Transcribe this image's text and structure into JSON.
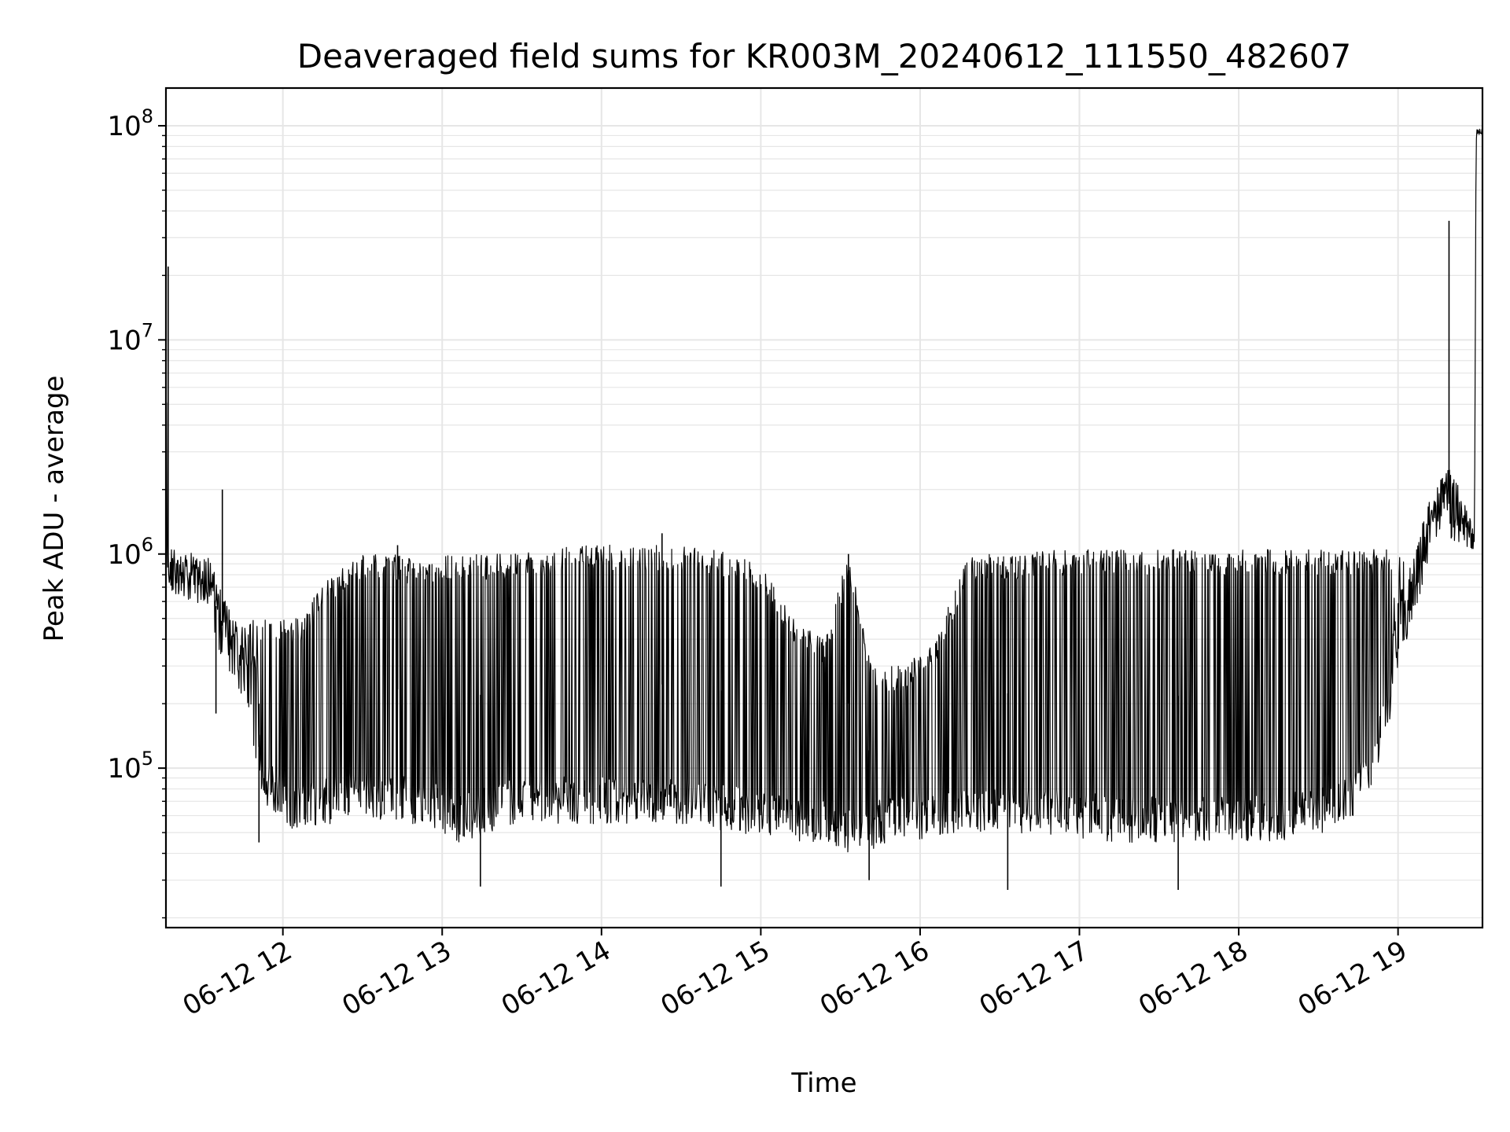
{
  "chart_data": {
    "type": "line",
    "title": "Deaveraged field sums for KR003M_20240612_111550_482607",
    "xlabel": "Time",
    "ylabel": "Peak ADU - average",
    "yscale": "log",
    "ylim": [
      18000,
      150000000
    ],
    "xlim_hours": [
      11.266,
      19.53
    ],
    "grid": true,
    "line_color": "#000000",
    "grid_color": "#e6e6e6",
    "x_ticks": [
      {
        "hour": 12,
        "label": "06-12 12"
      },
      {
        "hour": 13,
        "label": "06-12 13"
      },
      {
        "hour": 14,
        "label": "06-12 14"
      },
      {
        "hour": 15,
        "label": "06-12 15"
      },
      {
        "hour": 16,
        "label": "06-12 16"
      },
      {
        "hour": 17,
        "label": "06-12 17"
      },
      {
        "hour": 18,
        "label": "06-12 18"
      },
      {
        "hour": 19,
        "label": "06-12 19"
      }
    ],
    "y_ticks": [
      {
        "value": 100000,
        "base": "10",
        "exp": "5"
      },
      {
        "value": 1000000,
        "base": "10",
        "exp": "6"
      },
      {
        "value": 10000000,
        "base": "10",
        "exp": "7"
      },
      {
        "value": 100000000,
        "base": "10",
        "exp": "8"
      }
    ],
    "series": [
      {
        "name": "Peak ADU - average",
        "envelope": {
          "hours": [
            11.266,
            11.28,
            11.3,
            11.45,
            11.55,
            11.6,
            11.7,
            11.8,
            11.85,
            11.9,
            12.0,
            12.1,
            12.3,
            12.5,
            12.7,
            12.9,
            13.0,
            13.1,
            13.3,
            13.5,
            13.8,
            14.0,
            14.3,
            14.5,
            14.7,
            14.85,
            15.0,
            15.2,
            15.4,
            15.55,
            15.7,
            15.9,
            16.1,
            16.3,
            16.6,
            16.9,
            17.2,
            17.6,
            18.0,
            18.3,
            18.6,
            18.75,
            18.85,
            18.95,
            19.0,
            19.1,
            19.2,
            19.3,
            19.35,
            19.4,
            19.45,
            19.48,
            19.49,
            19.5,
            19.53
          ],
          "lows": [
            800000,
            700000,
            650000,
            600000,
            500000,
            350000,
            250000,
            150000,
            80000,
            65000,
            55000,
            50000,
            55000,
            60000,
            55000,
            55000,
            50000,
            45000,
            50000,
            55000,
            55000,
            55000,
            55000,
            55000,
            52000,
            50000,
            48000,
            46000,
            44000,
            40000,
            42000,
            45000,
            48000,
            50000,
            50000,
            48000,
            45000,
            45000,
            45000,
            46000,
            50000,
            60000,
            90000,
            150000,
            300000,
            500000,
            900000,
            1200000,
            1150000,
            1100000,
            1050000,
            1050000,
            85000000,
            90000000,
            92000000
          ],
          "highs": [
            10000000,
            1200000,
            1100000,
            1000000,
            1000000,
            700000,
            500000,
            500000,
            500000,
            500000,
            500000,
            500000,
            800000,
            1000000,
            1000000,
            900000,
            1000000,
            1000000,
            1000000,
            1000000,
            1100000,
            1100000,
            1100000,
            1100000,
            1050000,
            1000000,
            900000,
            500000,
            400000,
            1000000,
            300000,
            300000,
            400000,
            1000000,
            1000000,
            1050000,
            1050000,
            1050000,
            1050000,
            1050000,
            1050000,
            1050000,
            1050000,
            1050000,
            1050000,
            1100000,
            1800000,
            2500000,
            2500000,
            2000000,
            1500000,
            1200000,
            95000000,
            98000000,
            97000000
          ]
        },
        "spikes": [
          {
            "hour": 11.28,
            "value": 22000000
          },
          {
            "hour": 11.62,
            "value": 2000000
          },
          {
            "hour": 11.58,
            "value": 180000
          },
          {
            "hour": 11.85,
            "value": 45000
          },
          {
            "hour": 12.72,
            "value": 1100000
          },
          {
            "hour": 13.24,
            "value": 28000
          },
          {
            "hour": 14.38,
            "value": 1250000
          },
          {
            "hour": 14.75,
            "value": 28000
          },
          {
            "hour": 15.55,
            "value": 1000000
          },
          {
            "hour": 15.68,
            "value": 30000
          },
          {
            "hour": 16.55,
            "value": 27000
          },
          {
            "hour": 17.62,
            "value": 27000
          },
          {
            "hour": 19.32,
            "value": 36000000
          }
        ]
      }
    ]
  }
}
